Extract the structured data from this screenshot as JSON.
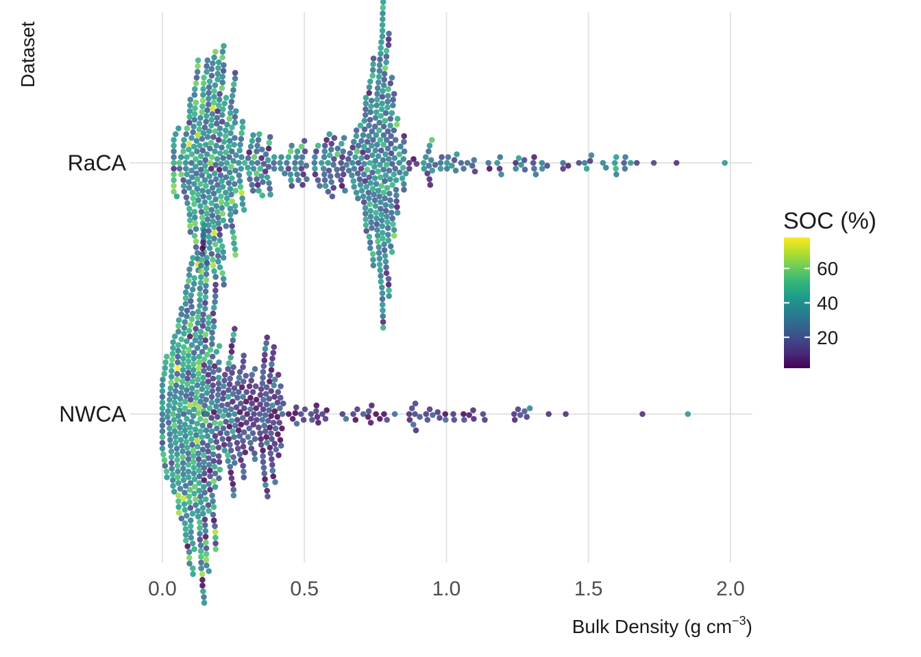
{
  "chart_data": {
    "type": "scatter",
    "subtype": "beeswarm",
    "xlabel": "Bulk Density (g cm",
    "xlabel_superscript": "−3",
    "xlabel_suffix": ")",
    "ylabel": "Dataset",
    "xlim": [
      -0.1,
      2.08
    ],
    "x_ticks": [
      0.0,
      0.5,
      1.0,
      1.5,
      2.0
    ],
    "x_tick_labels": [
      "0.0",
      "0.5",
      "1.0",
      "1.5",
      "2.0"
    ],
    "categories": [
      "RaCA",
      "NWCA"
    ],
    "grid": "on (vertical major lines at x ticks, horizontal lines at categories)",
    "colorbar": {
      "title": "SOC (%)",
      "palette": "viridis",
      "range": [
        2,
        78
      ],
      "ticks": [
        20,
        40,
        60
      ],
      "tick_labels": [
        "20",
        "40",
        "60"
      ],
      "colors": [
        "#440154",
        "#482878",
        "#3e4a89",
        "#31688e",
        "#26828e",
        "#1f9e89",
        "#35b779",
        "#6ece58",
        "#b5de2b",
        "#fde725"
      ]
    },
    "series": [
      {
        "name": "RaCA",
        "density_modes": [
          0.17,
          0.77
        ],
        "x_range": [
          0.05,
          1.98
        ],
        "visible_outliers": [
          {
            "x": 1.98,
            "soc": 40
          },
          {
            "x": 1.81,
            "soc": 10
          },
          {
            "x": 1.73,
            "soc": 15
          },
          {
            "x": 1.67,
            "soc": 15
          },
          {
            "x": 1.63,
            "soc": 30
          }
        ]
      },
      {
        "name": "NWCA",
        "density_modes": [
          0.1
        ],
        "x_range": [
          0.0,
          1.85
        ],
        "visible_outliers": [
          {
            "x": 1.85,
            "soc": 40
          },
          {
            "x": 1.69,
            "soc": 10
          },
          {
            "x": 1.42,
            "soc": 10
          },
          {
            "x": 1.36,
            "soc": 10
          }
        ]
      }
    ]
  }
}
